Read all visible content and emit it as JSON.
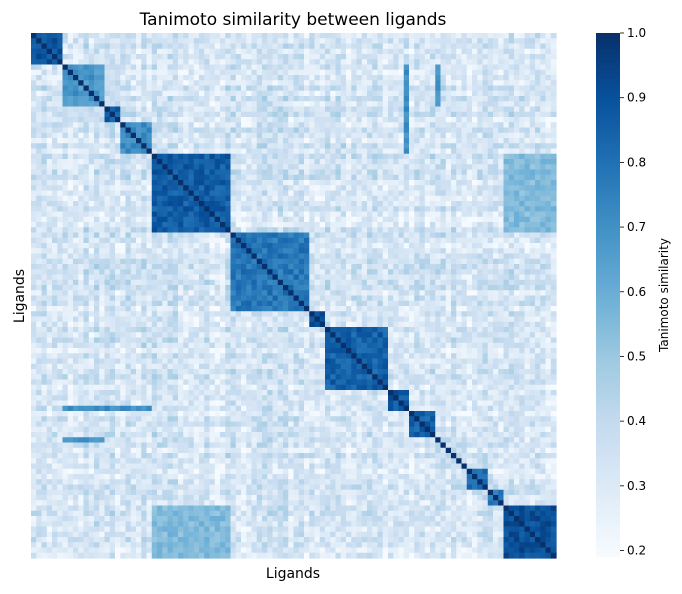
{
  "chart_data": {
    "type": "heatmap",
    "title": "Tanimoto similarity between ligands",
    "xlabel": "Ligands",
    "ylabel": "Ligands",
    "colorbar_label": "Tanimoto similarity",
    "colormap": "Blues",
    "colorbar_range": [
      0.19,
      1.0
    ],
    "colorbar_ticks": [
      "0.2",
      "0.3",
      "0.4",
      "0.5",
      "0.6",
      "0.7",
      "0.8",
      "0.9",
      "1.0"
    ],
    "n_ligands": 100,
    "diagonal_value": 1.0,
    "clusters": [
      {
        "start": 0,
        "end": 6,
        "intra": 0.9
      },
      {
        "start": 6,
        "end": 14,
        "intra": 0.68
      },
      {
        "start": 14,
        "end": 17,
        "intra": 0.85
      },
      {
        "start": 17,
        "end": 23,
        "intra": 0.72
      },
      {
        "start": 23,
        "end": 38,
        "intra": 0.86
      },
      {
        "start": 38,
        "end": 53,
        "intra": 0.78
      },
      {
        "start": 53,
        "end": 56,
        "intra": 0.92
      },
      {
        "start": 56,
        "end": 68,
        "intra": 0.85
      },
      {
        "start": 68,
        "end": 72,
        "intra": 0.88
      },
      {
        "start": 72,
        "end": 77,
        "intra": 0.85
      },
      {
        "start": 77,
        "end": 83,
        "intra": 0.38
      },
      {
        "start": 83,
        "end": 87,
        "intra": 0.8
      },
      {
        "start": 87,
        "end": 90,
        "intra": 0.75
      },
      {
        "start": 90,
        "end": 100,
        "intra": 0.9
      }
    ],
    "background_range": [
      0.22,
      0.42
    ],
    "cross_blocks": [
      {
        "rows": [
          6,
          14
        ],
        "cols": [
          77,
          78
        ],
        "value": 0.7
      },
      {
        "rows": [
          14,
          17
        ],
        "cols": [
          6,
          14
        ],
        "value": 0.38
      },
      {
        "rows": [
          23,
          38
        ],
        "cols": [
          90,
          100
        ],
        "value": 0.55
      },
      {
        "rows": [
          71,
          72
        ],
        "cols": [
          6,
          23
        ],
        "value": 0.7
      },
      {
        "rows": [
          90,
          100
        ],
        "cols": [
          23,
          38
        ],
        "value": 0.5
      }
    ]
  }
}
